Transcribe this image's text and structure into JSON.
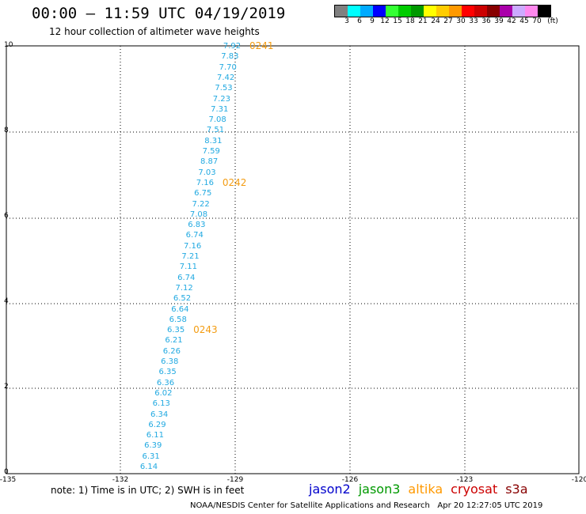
{
  "header": {
    "title": "00:00 – 11:59 UTC 04/19/2019",
    "subtitle": "12 hour collection of altimeter wave heights"
  },
  "legend": {
    "colors": [
      "#808080",
      "#00ffff",
      "#00aaff",
      "#0000ff",
      "#33ff33",
      "#00cc00",
      "#009900",
      "#ffff00",
      "#ffcc00",
      "#ff9900",
      "#ff0000",
      "#cc0000",
      "#880000",
      "#aa00aa",
      "#ccaaff",
      "#ff88ee",
      "#000000"
    ],
    "labels": [
      "3",
      "6",
      "9",
      "12",
      "15",
      "18",
      "21",
      "24",
      "27",
      "30",
      "33",
      "36",
      "39",
      "42",
      "45",
      "70",
      "(ft)"
    ]
  },
  "axes": {
    "y_ticks": [
      "10",
      "8",
      "6",
      "4",
      "2",
      "0"
    ],
    "x_ticks": [
      "-135",
      "-132",
      "-129",
      "-126",
      "-123",
      "-120"
    ]
  },
  "track": {
    "color": "#21a9e1",
    "values": [
      "7.92",
      "7.83",
      "7.70",
      "7.42",
      "7.53",
      "7.23",
      "7.31",
      "7.08",
      "7.51",
      "8.31",
      "7.59",
      "8.87",
      "7.03",
      "7.16",
      "6.75",
      "7.22",
      "7.08",
      "6.83",
      "6.74",
      "7.16",
      "7.21",
      "7.11",
      "6.74",
      "7.12",
      "6.52",
      "6.64",
      "6.58",
      "6.35",
      "6.21",
      "6.26",
      "6.38",
      "6.35",
      "6.36",
      "6.02",
      "6.13",
      "6.34",
      "6.29",
      "6.11",
      "6.39",
      "6.31",
      "6.14"
    ],
    "times": [
      {
        "label": "0241",
        "index": 0
      },
      {
        "label": "0242",
        "index": 13
      },
      {
        "label": "0243",
        "index": 27
      }
    ]
  },
  "footer": {
    "note": "note: 1) Time is in UTC; 2) SWH is in feet",
    "satellites": [
      {
        "name": "jason2",
        "color": "#0000cc"
      },
      {
        "name": "jason3",
        "color": "#009900"
      },
      {
        "name": "altika",
        "color": "#ff9900"
      },
      {
        "name": "cryosat",
        "color": "#cc0000"
      },
      {
        "name": "s3a",
        "color": "#880000"
      }
    ],
    "credit": "NOAA/NESDIS Center for Satellite Applications and Research   Apr 20 12:27:05 UTC 2019"
  }
}
